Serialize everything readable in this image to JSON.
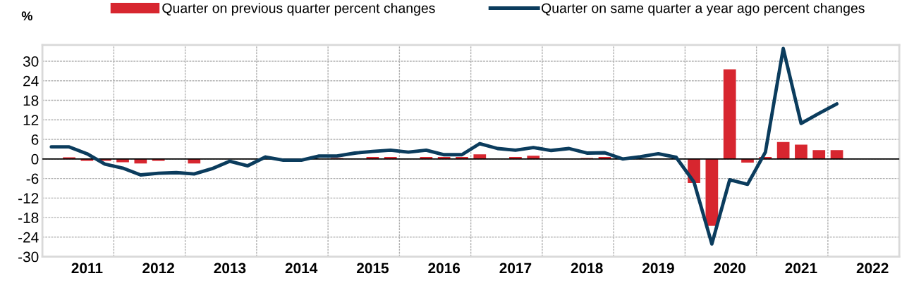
{
  "chart_data": {
    "type": "bar",
    "ylabel": "%",
    "categories": [
      null,
      null,
      "2011",
      null,
      null,
      null,
      "2012",
      null,
      null,
      null,
      "2013",
      null,
      null,
      null,
      "2014",
      null,
      null,
      null,
      "2015",
      null,
      null,
      null,
      "2016",
      null,
      null,
      null,
      "2017",
      null,
      null,
      null,
      "2018",
      null,
      null,
      null,
      "2019",
      null,
      null,
      null,
      "2020",
      null,
      null,
      null,
      "2021",
      null,
      null,
      null,
      "2022",
      null
    ],
    "series": [
      {
        "name": "Quarter on previous quarter percent changes",
        "color": "#d7262f",
        "values": [
          null,
          0.5,
          -0.6,
          -0.6,
          -1.0,
          -1.4,
          -0.6,
          0,
          -1.4,
          0,
          0,
          0,
          null,
          0,
          0,
          0,
          0.3,
          0,
          0.6,
          0.6,
          0,
          0.6,
          0.6,
          0.6,
          1.4,
          0,
          0.6,
          1.0,
          0,
          0,
          0.3,
          0.6,
          0,
          0,
          0,
          0,
          -7.4,
          -20.5,
          27.5,
          -1.1,
          0.6,
          5.2,
          4.4,
          2.7,
          2.7,
          null,
          null,
          null
        ]
      },
      {
        "name": "Quarter on same quarter a year ago percent changes",
        "type": "line",
        "color": "#0b3c5d",
        "values": [
          3.7,
          3.7,
          1.6,
          -1.6,
          -2.8,
          -4.9,
          -4.4,
          -4.2,
          -4.6,
          -3.0,
          -0.7,
          -2.1,
          0.6,
          -0.4,
          -0.4,
          0.9,
          0.9,
          1.8,
          2.3,
          2.7,
          2.1,
          2.7,
          1.3,
          1.3,
          4.7,
          3.2,
          2.7,
          3.5,
          2.6,
          3.2,
          1.8,
          1.9,
          0,
          0.7,
          1.6,
          0.5,
          -7.1,
          -26.1,
          -6.4,
          -7.8,
          2.1,
          33.9,
          10.9,
          14.0,
          16.9,
          null,
          null,
          null
        ]
      }
    ],
    "ylim": [
      -30,
      35
    ],
    "yticks": [
      -30,
      -24,
      -18,
      -12,
      -6,
      0,
      6,
      12,
      18,
      24,
      30
    ],
    "ref_lines": [
      {
        "axis": "y",
        "value": 0,
        "color": "#000000"
      }
    ],
    "grid": true,
    "legend": "top"
  }
}
